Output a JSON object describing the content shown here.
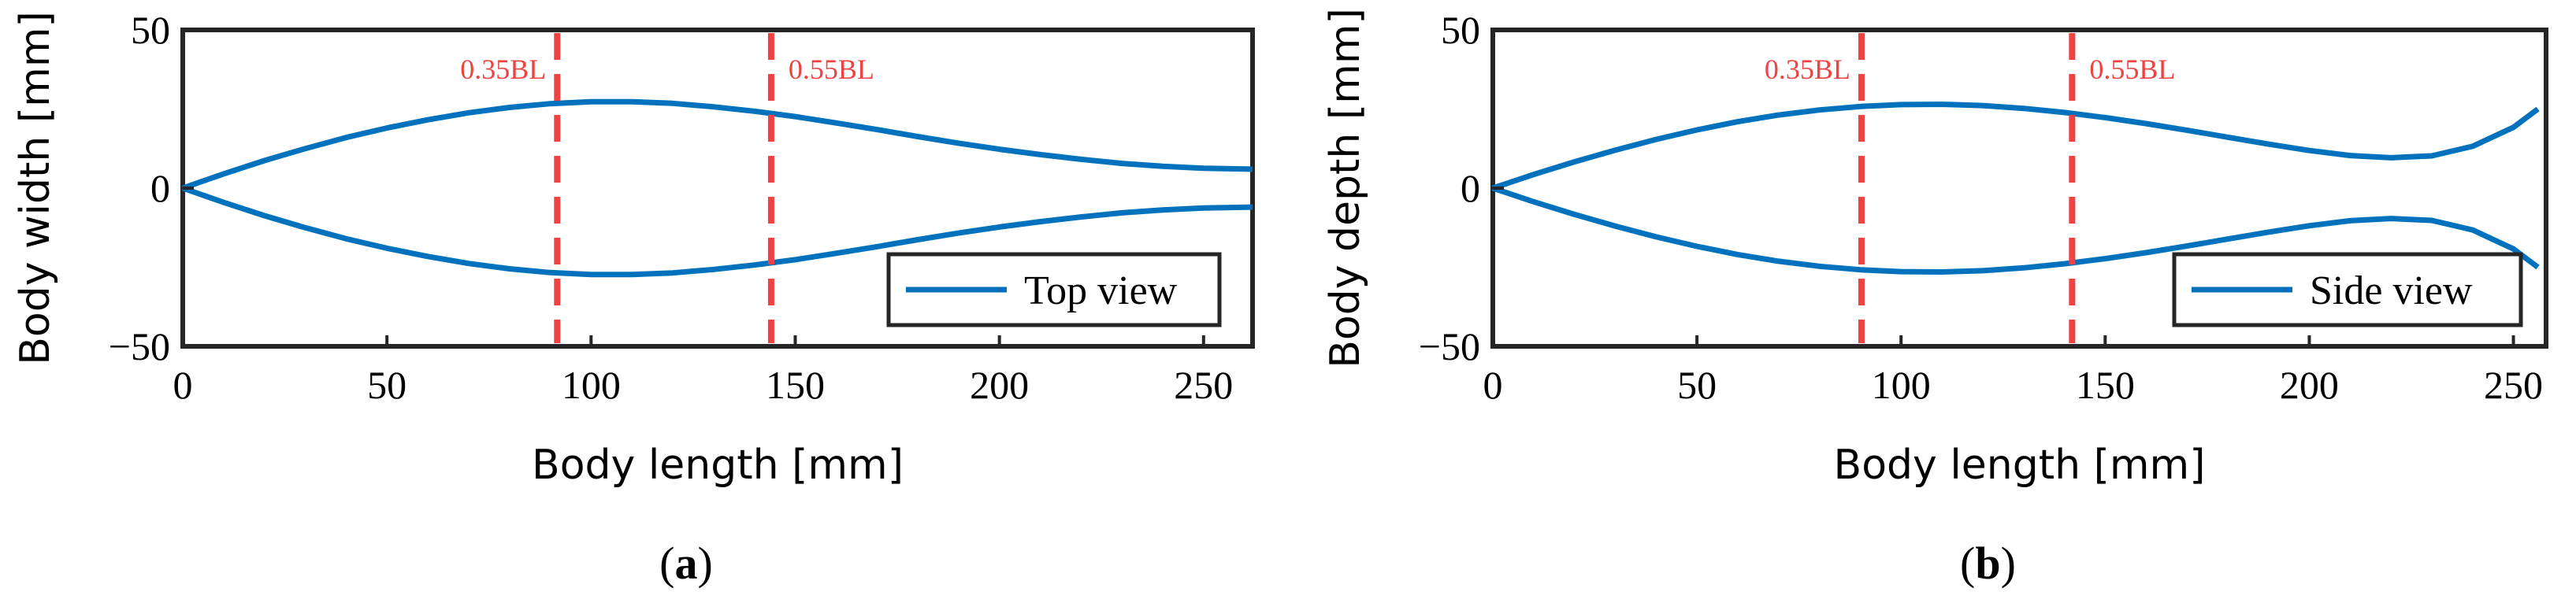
{
  "chart_data": [
    {
      "panel_label": "(a)",
      "panel_letter": "a",
      "type": "line",
      "xlabel": "Body length [mm]",
      "ylabel": "Body width [mm]",
      "xlim": [
        0,
        262
      ],
      "ylim": [
        -50,
        50
      ],
      "xticks": [
        0,
        50,
        100,
        150,
        200,
        250
      ],
      "yticks": [
        -50,
        0,
        50
      ],
      "xtick_labels": [
        "0",
        "50",
        "100",
        "150",
        "200",
        "250"
      ],
      "ytick_labels": [
        "−50",
        "0",
        "50"
      ],
      "legend": {
        "label": "Top view",
        "placement": "bottom-right"
      },
      "series_color": "#0072BD",
      "marker_color": "#EF4343",
      "markers": [
        {
          "x": 91.7,
          "label": "0.35BL"
        },
        {
          "x": 144.1,
          "label": "0.55BL"
        }
      ],
      "series": [
        {
          "x": [
            0,
            10,
            20,
            30,
            40,
            50,
            60,
            70,
            80,
            90,
            100,
            110,
            120,
            130,
            140,
            150,
            160,
            170,
            180,
            190,
            200,
            210,
            220,
            230,
            240,
            250,
            262
          ],
          "upper": [
            0,
            4.5,
            8.7,
            12.5,
            16.0,
            19.0,
            21.6,
            23.8,
            25.5,
            26.7,
            27.3,
            27.3,
            26.8,
            25.7,
            24.3,
            22.6,
            20.6,
            18.5,
            16.3,
            14.2,
            12.3,
            10.6,
            9.1,
            7.8,
            6.9,
            6.3,
            6.0
          ],
          "lower": [
            0,
            -4.5,
            -8.7,
            -12.5,
            -16.0,
            -19.0,
            -21.6,
            -23.8,
            -25.5,
            -26.7,
            -27.3,
            -27.3,
            -26.8,
            -25.7,
            -24.3,
            -22.6,
            -20.6,
            -18.5,
            -16.3,
            -14.2,
            -12.3,
            -10.6,
            -9.1,
            -7.8,
            -6.9,
            -6.3,
            -6.0
          ]
        }
      ]
    },
    {
      "panel_label": "(b)",
      "panel_letter": "b",
      "type": "line",
      "xlabel": "Body length [mm]",
      "ylabel": "Body depth [mm]",
      "xlim": [
        0,
        258
      ],
      "ylim": [
        -50,
        50
      ],
      "xticks": [
        0,
        50,
        100,
        150,
        200,
        250
      ],
      "yticks": [
        -50,
        0,
        50
      ],
      "xtick_labels": [
        "0",
        "50",
        "100",
        "150",
        "200",
        "250"
      ],
      "ytick_labels": [
        "−50",
        "0",
        "50"
      ],
      "legend": {
        "label": "Side view",
        "placement": "bottom-right"
      },
      "series_color": "#0072BD",
      "marker_color": "#EF4343",
      "markers": [
        {
          "x": 90.3,
          "label": "0.35BL"
        },
        {
          "x": 141.9,
          "label": "0.55BL"
        }
      ],
      "series": [
        {
          "x": [
            0,
            10,
            20,
            30,
            40,
            50,
            60,
            70,
            80,
            90,
            100,
            110,
            120,
            130,
            140,
            150,
            160,
            170,
            180,
            190,
            200,
            210,
            220,
            230,
            240,
            250,
            256
          ],
          "upper": [
            0,
            4.3,
            8.3,
            12.0,
            15.4,
            18.4,
            21.0,
            23.1,
            24.7,
            25.8,
            26.4,
            26.5,
            26.1,
            25.2,
            23.9,
            22.3,
            20.4,
            18.3,
            16.1,
            13.9,
            11.9,
            10.3,
            9.6,
            10.2,
            13.2,
            19.2,
            25.0
          ],
          "lower": [
            0,
            -4.3,
            -8.3,
            -12.0,
            -15.4,
            -18.4,
            -21.0,
            -23.1,
            -24.7,
            -25.8,
            -26.4,
            -26.5,
            -26.1,
            -25.2,
            -23.9,
            -22.3,
            -20.4,
            -18.3,
            -16.1,
            -13.9,
            -11.9,
            -10.3,
            -9.6,
            -10.2,
            -13.2,
            -19.2,
            -25.0
          ]
        }
      ]
    }
  ]
}
